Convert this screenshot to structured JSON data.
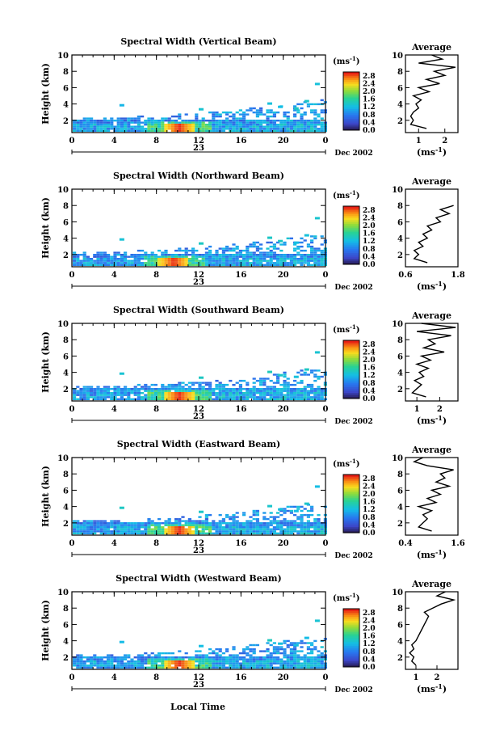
{
  "figure": {
    "xlabel": "Local Time",
    "day_label": "23",
    "date_label": "Dec 2002",
    "colorbar_unit": "(ms",
    "colorbar_unit_exp": "-1",
    "colorbar_unit_close": ")",
    "avg_title": "Average",
    "avg_xlabel": "(ms",
    "avg_xlabel_exp": "-1",
    "avg_xlabel_close": ")",
    "ylabel": "Height (km)"
  },
  "chart_data": [
    {
      "type": "heatmap",
      "title": "Spectral Width (Vertical Beam)",
      "xlabel": "Local Time",
      "ylabel": "Height (km)",
      "x_ticks": [
        "0",
        "4",
        "8",
        "12",
        "16",
        "20",
        "0"
      ],
      "y_ticks": [
        "2",
        "4",
        "6",
        "8",
        "10"
      ],
      "xlim": [
        0,
        24
      ],
      "ylim": [
        0.5,
        10
      ],
      "colorbar": {
        "ticks": [
          "0.0",
          "0.4",
          "0.8",
          "1.2",
          "1.6",
          "2.0",
          "2.4",
          "2.8"
        ],
        "range": [
          0,
          3.0
        ]
      },
      "hotspot_time": 10,
      "profile": {
        "xlim": [
          0.5,
          2.5
        ],
        "x_ticks": [
          "1",
          "2"
        ],
        "x_tick_values": [
          1,
          2
        ],
        "heights": [
          1.0,
          1.5,
          2.0,
          2.5,
          3.0,
          3.5,
          4.0,
          4.5,
          5.0,
          5.5,
          6.0,
          6.5,
          7.0,
          7.5,
          8.0,
          8.5,
          9.0,
          9.5,
          10.0
        ],
        "values": [
          1.3,
          0.7,
          0.8,
          0.7,
          0.8,
          1.0,
          0.9,
          1.1,
          0.8,
          1.4,
          1.0,
          1.8,
          1.3,
          2.0,
          1.6,
          2.4,
          1.0,
          1.9,
          1.5
        ]
      }
    },
    {
      "type": "heatmap",
      "title": "Spectral Width (Northward Beam)",
      "xlabel": "Local Time",
      "ylabel": "Height (km)",
      "x_ticks": [
        "0",
        "4",
        "8",
        "12",
        "16",
        "20",
        "0"
      ],
      "y_ticks": [
        "2",
        "4",
        "6",
        "8",
        "10"
      ],
      "xlim": [
        0,
        24
      ],
      "ylim": [
        0.5,
        10
      ],
      "colorbar": {
        "ticks": [
          "0.0",
          "0.4",
          "0.8",
          "1.2",
          "1.6",
          "2.0",
          "2.4",
          "2.8"
        ],
        "range": [
          0,
          3.0
        ]
      },
      "hotspot_time": 9.5,
      "profile": {
        "xlim": [
          0.6,
          1.8
        ],
        "x_ticks": [
          "0.6",
          "1.8"
        ],
        "x_tick_values": [
          0.6,
          1.8
        ],
        "heights": [
          1.0,
          1.5,
          2.0,
          2.5,
          3.0,
          3.5,
          4.0,
          4.5,
          5.0,
          5.5,
          6.0,
          6.5,
          7.0,
          7.5,
          8.0
        ],
        "values": [
          1.1,
          0.8,
          0.9,
          0.8,
          1.0,
          0.9,
          1.1,
          1.0,
          1.2,
          1.1,
          1.4,
          1.3,
          1.6,
          1.4,
          1.7
        ]
      }
    },
    {
      "type": "heatmap",
      "title": "Spectral Width (Southward Beam)",
      "xlabel": "Local Time",
      "ylabel": "Height (km)",
      "x_ticks": [
        "0",
        "4",
        "8",
        "12",
        "16",
        "20",
        "0"
      ],
      "y_ticks": [
        "2",
        "4",
        "6",
        "8",
        "10"
      ],
      "xlim": [
        0,
        24
      ],
      "ylim": [
        0.5,
        10
      ],
      "colorbar": {
        "ticks": [
          "0.0",
          "0.4",
          "0.8",
          "1.2",
          "1.6",
          "2.0",
          "2.4",
          "2.8"
        ],
        "range": [
          0,
          3.0
        ]
      },
      "hotspot_time": 10,
      "profile": {
        "xlim": [
          0.5,
          2.8
        ],
        "x_ticks": [
          "1",
          "2"
        ],
        "x_tick_values": [
          1,
          2
        ],
        "heights": [
          1.0,
          1.5,
          2.0,
          2.5,
          3.0,
          3.5,
          4.0,
          4.5,
          5.0,
          5.5,
          6.0,
          6.5,
          7.0,
          7.5,
          8.0,
          8.5,
          9.0,
          9.5,
          10.0
        ],
        "values": [
          1.4,
          0.8,
          1.0,
          1.2,
          0.9,
          1.3,
          1.1,
          1.5,
          1.0,
          1.6,
          1.2,
          2.2,
          1.3,
          1.8,
          1.5,
          2.5,
          1.0,
          2.7,
          1.2
        ]
      }
    },
    {
      "type": "heatmap",
      "title": "Spectral Width (Eastward Beam)",
      "xlabel": "Local Time",
      "ylabel": "Height (km)",
      "x_ticks": [
        "0",
        "4",
        "8",
        "12",
        "16",
        "20",
        "0"
      ],
      "y_ticks": [
        "2",
        "4",
        "6",
        "8",
        "10"
      ],
      "xlim": [
        0,
        24
      ],
      "ylim": [
        0.5,
        10
      ],
      "colorbar": {
        "ticks": [
          "0.0",
          "0.4",
          "0.8",
          "1.2",
          "1.6",
          "2.0",
          "2.4",
          "2.8"
        ],
        "range": [
          0,
          3.0
        ]
      },
      "hotspot_time": 10,
      "profile": {
        "xlim": [
          0.4,
          1.6
        ],
        "x_ticks": [
          "0.4",
          "1.6"
        ],
        "x_tick_values": [
          0.4,
          1.6
        ],
        "heights": [
          1.0,
          1.5,
          2.0,
          2.5,
          3.0,
          3.5,
          4.0,
          4.5,
          5.0,
          5.5,
          6.0,
          6.5,
          7.0,
          7.5,
          8.0,
          8.5,
          9.0,
          9.5,
          10.0
        ],
        "values": [
          1.0,
          0.7,
          0.8,
          0.9,
          0.8,
          1.0,
          0.7,
          1.1,
          0.9,
          1.2,
          1.0,
          1.4,
          1.1,
          1.3,
          1.2,
          1.5,
          0.9,
          0.6,
          0.8
        ]
      }
    },
    {
      "type": "heatmap",
      "title": "Spectral Width (Westward Beam)",
      "xlabel": "Local Time",
      "ylabel": "Height (km)",
      "x_ticks": [
        "0",
        "4",
        "8",
        "12",
        "16",
        "20",
        "0"
      ],
      "y_ticks": [
        "2",
        "4",
        "6",
        "8",
        "10"
      ],
      "xlim": [
        0,
        24
      ],
      "ylim": [
        0.5,
        10
      ],
      "colorbar": {
        "ticks": [
          "0.0",
          "0.4",
          "0.8",
          "1.2",
          "1.6",
          "2.0",
          "2.4",
          "2.8"
        ],
        "range": [
          0,
          3.0
        ]
      },
      "hotspot_time": 10,
      "profile": {
        "xlim": [
          0.5,
          3.0
        ],
        "x_ticks": [
          "1",
          "2"
        ],
        "x_tick_values": [
          1,
          2
        ],
        "heights": [
          1.0,
          1.5,
          2.0,
          2.5,
          3.0,
          3.5,
          4.0,
          4.5,
          5.0,
          5.5,
          6.0,
          6.5,
          7.0,
          7.5,
          8.0,
          8.5,
          9.0,
          9.5,
          10.0
        ],
        "values": [
          1.0,
          0.8,
          0.9,
          0.7,
          0.9,
          0.8,
          1.0,
          1.1,
          1.2,
          1.3,
          1.4,
          1.5,
          1.6,
          1.4,
          1.8,
          2.2,
          2.8,
          2.0,
          2.4
        ]
      }
    }
  ]
}
